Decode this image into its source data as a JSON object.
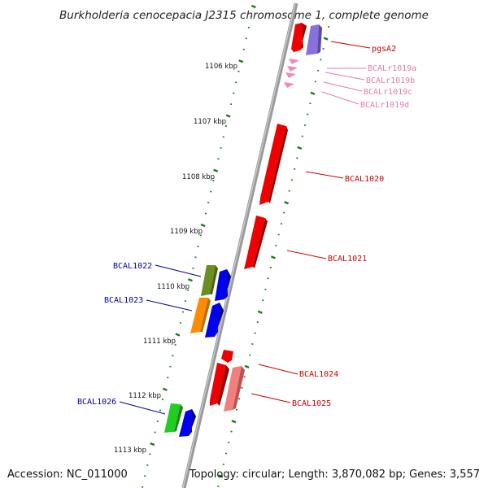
{
  "title": "Burkholderia cenocepacia J2315 chromosome 1, complete genome",
  "footer": {
    "accession": "Accession: NC_011000",
    "topology": "Topology: circular; Length: 3,870,082 bp; Genes: 3,557"
  },
  "colors": {
    "backbone": "#8a8a8a",
    "tick": "#1f7a1f",
    "red": "#ee0000",
    "pink_light": "#f08080",
    "rna_pink": "#ee88bb",
    "violet": "#8870dd",
    "olive": "#6b8e23",
    "orange": "#ff8c00",
    "blue": "#0000ee",
    "green": "#22cc22",
    "label_red": "#cc0000",
    "label_pink": "#e37bb0",
    "label_blue": "#000099"
  },
  "kbp_markers": [
    {
      "label": "1106 kbp"
    },
    {
      "label": "1107 kbp"
    },
    {
      "label": "1108 kbp"
    },
    {
      "label": "1109 kbp"
    },
    {
      "label": "1110 kbp"
    },
    {
      "label": "1111 kbp"
    },
    {
      "label": "1112 kbp"
    },
    {
      "label": "1113 kbp"
    }
  ],
  "gene_labels": [
    {
      "name": "pgsA2",
      "color_key": "label_red"
    },
    {
      "name": "BCALr1019a",
      "color_key": "label_pink"
    },
    {
      "name": "BCALr1019b",
      "color_key": "label_pink"
    },
    {
      "name": "BCALr1019c",
      "color_key": "label_pink"
    },
    {
      "name": "BCALr1019d",
      "color_key": "label_pink"
    },
    {
      "name": "BCAL1020",
      "color_key": "label_red"
    },
    {
      "name": "BCAL1021",
      "color_key": "label_red"
    },
    {
      "name": "BCAL1022",
      "color_key": "label_blue"
    },
    {
      "name": "BCAL1023",
      "color_key": "label_blue"
    },
    {
      "name": "BCAL1024",
      "color_key": "label_red"
    },
    {
      "name": "BCAL1025",
      "color_key": "label_red"
    },
    {
      "name": "BCAL1026",
      "color_key": "label_blue"
    }
  ]
}
